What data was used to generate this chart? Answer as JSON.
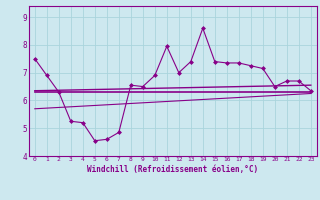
{
  "xlabel": "Windchill (Refroidissement éolien,°C)",
  "background_color": "#cde8ef",
  "line_color": "#880088",
  "xlim": [
    -0.5,
    23.5
  ],
  "ylim": [
    4,
    9.4
  ],
  "xticks": [
    0,
    1,
    2,
    3,
    4,
    5,
    6,
    7,
    8,
    9,
    10,
    11,
    12,
    13,
    14,
    15,
    16,
    17,
    18,
    19,
    20,
    21,
    22,
    23
  ],
  "yticks": [
    4,
    5,
    6,
    7,
    8,
    9
  ],
  "grid_color": "#aad4dc",
  "font_color": "#880088",
  "series1_x": [
    0,
    1,
    2,
    3,
    4,
    5,
    6,
    7,
    8,
    9,
    10,
    11,
    12,
    13,
    14,
    15,
    16,
    17,
    18,
    19,
    20,
    21,
    22,
    23
  ],
  "series1_y": [
    7.5,
    6.9,
    6.3,
    5.25,
    5.2,
    4.55,
    4.6,
    4.85,
    6.55,
    6.5,
    6.9,
    7.95,
    7.0,
    7.4,
    8.6,
    7.4,
    7.35,
    7.35,
    7.25,
    7.15,
    6.5,
    6.7,
    6.7,
    6.35
  ],
  "series2_x": [
    0,
    23
  ],
  "series2_y": [
    6.3,
    6.3
  ],
  "series3_x": [
    0,
    23
  ],
  "series3_y": [
    6.35,
    6.55
  ],
  "series4_x": [
    0,
    23
  ],
  "series4_y": [
    5.7,
    6.25
  ]
}
